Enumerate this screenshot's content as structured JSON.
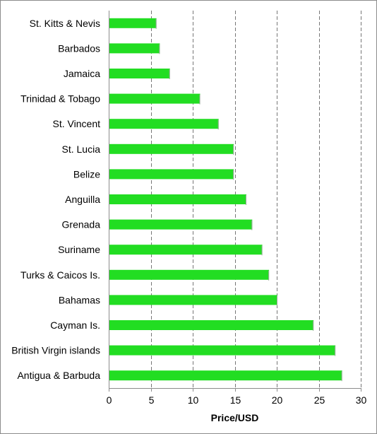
{
  "chart_data": {
    "type": "bar",
    "orientation": "horizontal",
    "categories": [
      "St. Kitts & Nevis",
      "Barbados",
      "Jamaica",
      "Trinidad & Tobago",
      "St. Vincent",
      "St. Lucia",
      "Belize",
      "Anguilla",
      "Grenada",
      "Suriname",
      "Turks & Caicos Is.",
      "Bahamas",
      "Cayman Is.",
      "British Virgin islands",
      "Antigua & Barbuda"
    ],
    "values": [
      5.6,
      6.0,
      7.2,
      10.8,
      13.0,
      14.8,
      14.8,
      16.3,
      17.0,
      18.2,
      19.0,
      20.0,
      24.3,
      26.9,
      27.7
    ],
    "xlabel": "Price/USD",
    "ylabel": "",
    "xlim": [
      0,
      30
    ],
    "xticks": [
      "0",
      "5",
      "10",
      "15",
      "20",
      "25",
      "30"
    ],
    "grid": "vertical dashed",
    "legend": "none",
    "bar_color": "#22dd22"
  }
}
